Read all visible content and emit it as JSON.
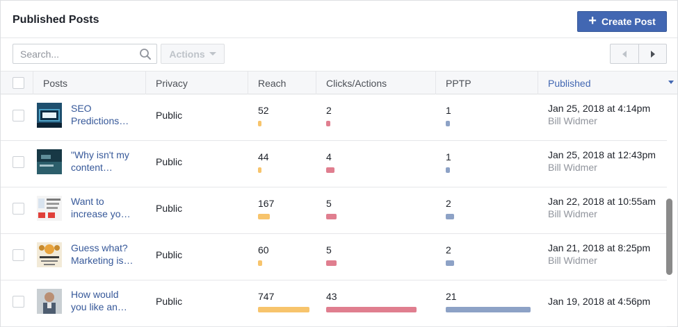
{
  "header": {
    "title": "Published Posts",
    "create_label": "Create Post"
  },
  "toolbar": {
    "search_placeholder": "Search...",
    "actions_label": "Actions"
  },
  "columns": [
    "Posts",
    "Privacy",
    "Reach",
    "Clicks/Actions",
    "PPTP",
    "Published"
  ],
  "rows": [
    {
      "title_line1": "SEO",
      "title_line2": "Predictions…",
      "privacy": "Public",
      "reach": "52",
      "clicks": "2",
      "pptp": "1",
      "date": "Jan 25, 2018 at 4:14pm",
      "author": "Bill Widmer",
      "reach_value": 52,
      "clicks_value": 2,
      "pptp_value": 1
    },
    {
      "title_line1": "\"Why isn't my",
      "title_line2": "content…",
      "privacy": "Public",
      "reach": "44",
      "clicks": "4",
      "pptp": "1",
      "date": "Jan 25, 2018 at 12:43pm",
      "author": "Bill Widmer",
      "reach_value": 44,
      "clicks_value": 4,
      "pptp_value": 1
    },
    {
      "title_line1": "Want to",
      "title_line2": "increase yo…",
      "privacy": "Public",
      "reach": "167",
      "clicks": "5",
      "pptp": "2",
      "date": "Jan 22, 2018 at 10:55am",
      "author": "Bill Widmer",
      "reach_value": 167,
      "clicks_value": 5,
      "pptp_value": 2
    },
    {
      "title_line1": "Guess what?",
      "title_line2": "Marketing is…",
      "privacy": "Public",
      "reach": "60",
      "clicks": "5",
      "pptp": "2",
      "date": "Jan 21, 2018 at 8:25pm",
      "author": "Bill Widmer",
      "reach_value": 60,
      "clicks_value": 5,
      "pptp_value": 2
    },
    {
      "title_line1": "How would",
      "title_line2": "you like an…",
      "privacy": "Public",
      "reach": "747",
      "clicks": "43",
      "pptp": "21",
      "date": "Jan 19, 2018 at 4:56pm",
      "author": "",
      "reach_value": 747,
      "clicks_value": 43,
      "pptp_value": 21
    }
  ],
  "icons": {
    "create": "plus-icon",
    "search": "search-icon",
    "actions": "caret-down-icon",
    "prev": "chevron-left-icon",
    "next": "chevron-right-icon",
    "sort": "sort-desc-icon"
  },
  "colors": {
    "accent": "#4267b2",
    "link": "#365899",
    "reach_bar": "#f7c46c",
    "clicks_bar": "#e07e8f",
    "pptp_bar": "#8da2c6"
  }
}
